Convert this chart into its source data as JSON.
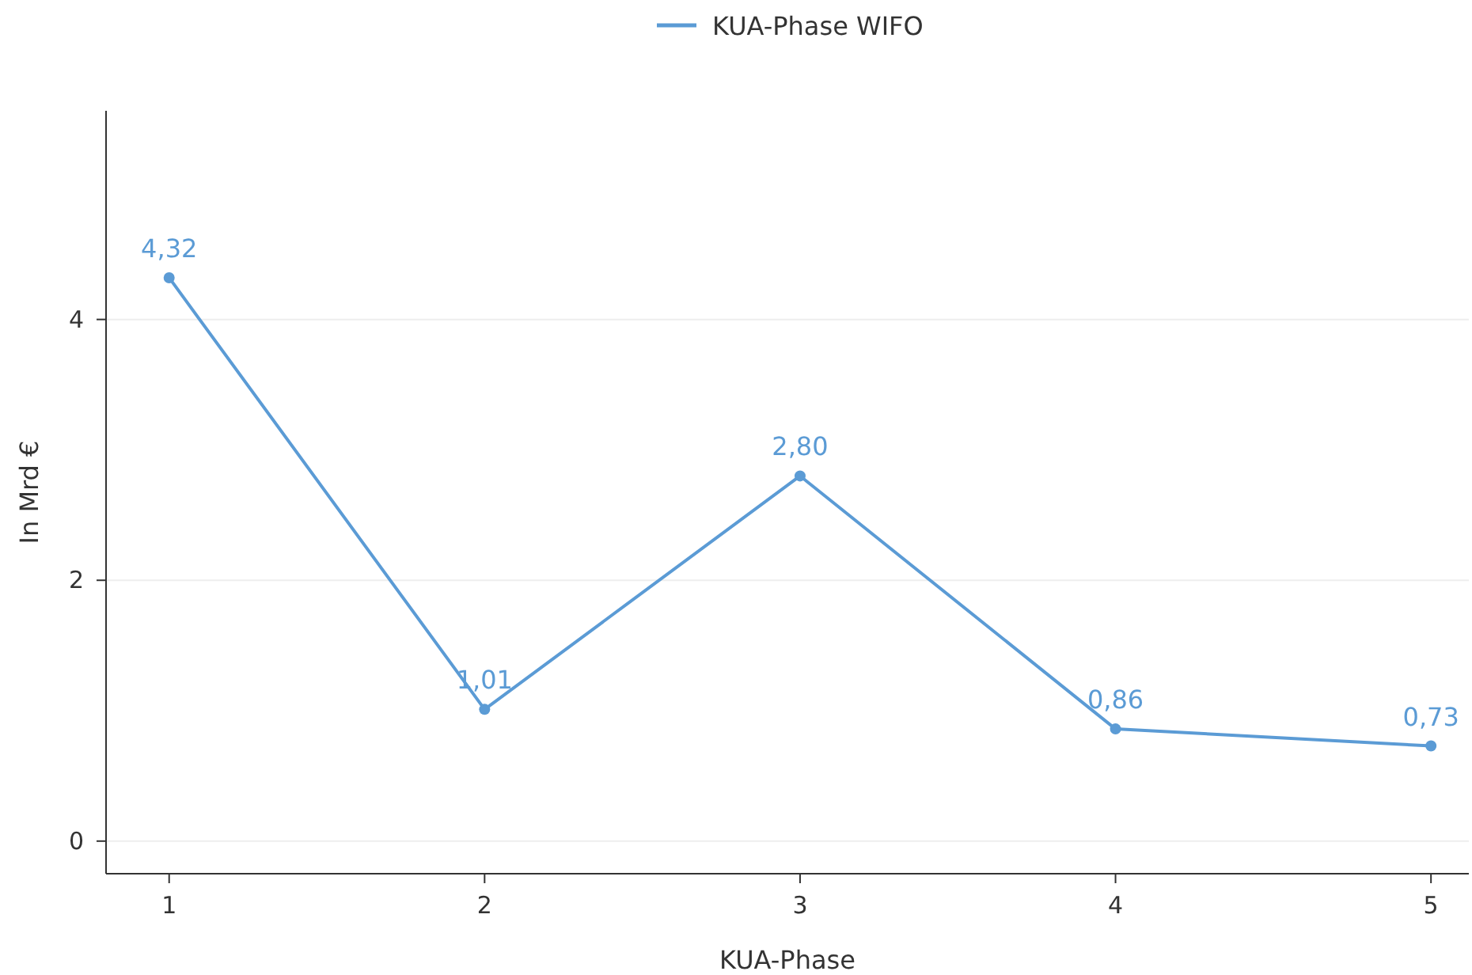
{
  "chart_data": {
    "type": "line",
    "xlabel": "KUA-Phase",
    "ylabel": "In Mrd €",
    "x": [
      1,
      2,
      3,
      4,
      5
    ],
    "series": [
      {
        "name": "KUA-Phase WIFO",
        "color": "#5b9bd5",
        "values": [
          4.32,
          1.01,
          2.8,
          0.86,
          0.73
        ],
        "value_labels": [
          "4,32",
          "1,01",
          "2,80",
          "0,86",
          "0,73"
        ]
      }
    ],
    "xlim": [
      0.8,
      5.12
    ],
    "xticks": [
      1,
      2,
      3,
      4,
      5
    ],
    "ylim": [
      -0.25,
      5.6
    ],
    "yticks": [
      0,
      2,
      4
    ],
    "grid": "y",
    "legend": "top",
    "marker": "circle",
    "line_style": "solid"
  }
}
